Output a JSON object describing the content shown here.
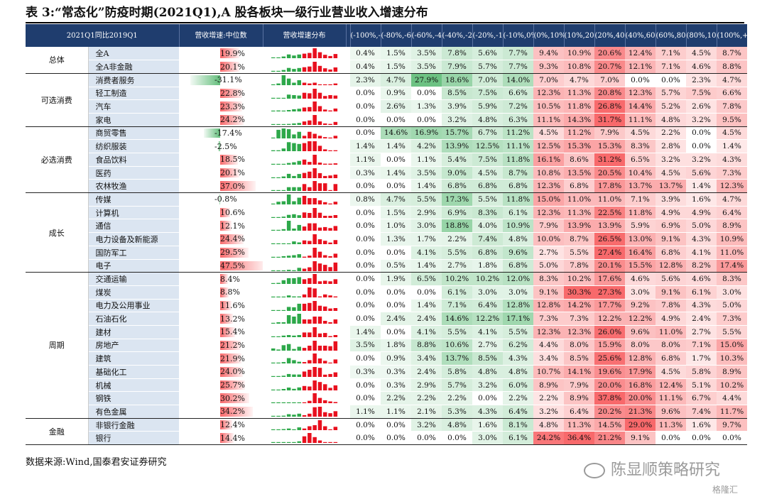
{
  "title": "表 3:“常态化”防疫时期(2021Q1),A 股各板块一级行业营业收入增速分布",
  "header": {
    "col0": "2021Q1同比2019Q1",
    "median": "营收增速:中位数",
    "dist": "营收增速分布",
    "buckets": [
      "(-100%,-80%)",
      "(-80%,-60%)",
      "(-60%,-40%)",
      "(-40%,-20%)",
      "(-20%,-10%)",
      "(-10%,0%)",
      "(0%,10%)",
      "(10%,20%)",
      "(20%,40%)",
      "(40%,60%)",
      "(60%,80%)",
      "(80%,100%)",
      "(100%,+∞)"
    ]
  },
  "groups": [
    {
      "name": "总体",
      "rows": [
        {
          "ind": "全A",
          "median": "19.9%",
          "mv": 19.9,
          "vals": [
            "0.4%",
            "1.5%",
            "3.5%",
            "7.8%",
            "5.6%",
            "7.7%",
            "9.4%",
            "10.9%",
            "20.6%",
            "12.4%",
            "7.1%",
            "4.5%",
            "8.7%"
          ]
        },
        {
          "ind": "全A非金融",
          "median": "20.1%",
          "mv": 20.1,
          "vals": [
            "0.4%",
            "1.5%",
            "3.5%",
            "7.9%",
            "5.7%",
            "7.7%",
            "9.3%",
            "10.8%",
            "20.7%",
            "12.1%",
            "7.1%",
            "4.6%",
            "8.8%"
          ]
        }
      ]
    },
    {
      "name": "可选消费",
      "rows": [
        {
          "ind": "消费者服务",
          "median": "-31.1%",
          "mv": -31.1,
          "vals": [
            "2.3%",
            "4.7%",
            "27.9%",
            "18.6%",
            "7.0%",
            "14.0%",
            "7.0%",
            "4.7%",
            "7.0%",
            "0.0%",
            "0.0%",
            "2.3%",
            "4.7%"
          ]
        },
        {
          "ind": "轻工制造",
          "median": "22.8%",
          "mv": 22.8,
          "vals": [
            "0.0%",
            "0.9%",
            "0.0%",
            "8.5%",
            "7.5%",
            "6.6%",
            "12.3%",
            "11.3%",
            "20.8%",
            "12.3%",
            "5.7%",
            "7.5%",
            "6.6%"
          ]
        },
        {
          "ind": "汽车",
          "median": "23.3%",
          "mv": 23.3,
          "vals": [
            "0.0%",
            "2.6%",
            "1.3%",
            "3.9%",
            "5.9%",
            "7.2%",
            "10.5%",
            "11.8%",
            "26.8%",
            "14.4%",
            "5.2%",
            "2.6%",
            "7.8%"
          ]
        },
        {
          "ind": "家电",
          "median": "24.2%",
          "mv": 24.2,
          "vals": [
            "0.0%",
            "0.0%",
            "0.0%",
            "3.2%",
            "4.8%",
            "6.3%",
            "11.1%",
            "14.3%",
            "31.7%",
            "11.1%",
            "4.8%",
            "3.2%",
            "9.5%"
          ]
        }
      ]
    },
    {
      "name": "必选消费",
      "rows": [
        {
          "ind": "商贸零售",
          "median": "-17.4%",
          "mv": -17.4,
          "vals": [
            "0.0%",
            "14.6%",
            "16.9%",
            "15.7%",
            "6.7%",
            "11.2%",
            "4.5%",
            "11.2%",
            "7.9%",
            "4.5%",
            "2.2%",
            "0.0%",
            "4.5%"
          ]
        },
        {
          "ind": "纺织服装",
          "median": "-2.5%",
          "mv": -2.5,
          "vals": [
            "1.4%",
            "1.4%",
            "4.2%",
            "13.9%",
            "12.5%",
            "11.1%",
            "12.5%",
            "15.3%",
            "15.3%",
            "8.3%",
            "2.8%",
            "0.0%",
            "1.4%"
          ]
        },
        {
          "ind": "食品饮料",
          "median": "18.5%",
          "mv": 18.5,
          "vals": [
            "1.1%",
            "0.0%",
            "1.1%",
            "5.4%",
            "7.5%",
            "11.8%",
            "16.1%",
            "8.6%",
            "31.2%",
            "6.5%",
            "3.2%",
            "3.2%",
            "4.3%"
          ]
        },
        {
          "ind": "医药",
          "median": "20.1%",
          "mv": 20.1,
          "vals": [
            "0.3%",
            "1.4%",
            "3.5%",
            "9.0%",
            "4.5%",
            "8.7%",
            "10.8%",
            "13.5%",
            "20.5%",
            "10.4%",
            "4.5%",
            "5.6%",
            "7.3%"
          ]
        },
        {
          "ind": "农林牧渔",
          "median": "37.0%",
          "mv": 37.0,
          "vals": [
            "0.0%",
            "0.0%",
            "1.4%",
            "6.8%",
            "6.8%",
            "6.8%",
            "12.3%",
            "6.8%",
            "17.8%",
            "13.7%",
            "13.7%",
            "1.4%",
            "12.3%"
          ]
        }
      ]
    },
    {
      "name": "成长",
      "rows": [
        {
          "ind": "传媒",
          "median": "-0.8%",
          "mv": -0.8,
          "vals": [
            "0.8%",
            "4.7%",
            "5.5%",
            "17.3%",
            "5.5%",
            "11.8%",
            "15.0%",
            "11.0%",
            "11.0%",
            "7.1%",
            "3.9%",
            "1.6%",
            "4.7%"
          ]
        },
        {
          "ind": "计算机",
          "median": "10.6%",
          "mv": 10.6,
          "vals": [
            "0.0%",
            "1.5%",
            "2.9%",
            "6.9%",
            "8.3%",
            "6.1%",
            "12.3%",
            "11.3%",
            "22.5%",
            "11.8%",
            "4.9%",
            "4.9%",
            "6.4%"
          ]
        },
        {
          "ind": "通信",
          "median": "12.1%",
          "mv": 12.1,
          "vals": [
            "0.0%",
            "1.0%",
            "3.0%",
            "18.8%",
            "4.0%",
            "10.9%",
            "7.9%",
            "13.9%",
            "13.9%",
            "5.9%",
            "6.9%",
            "5.0%",
            "8.9%"
          ]
        },
        {
          "ind": "电力设备及新能源",
          "median": "24.4%",
          "mv": 24.4,
          "vals": [
            "0.0%",
            "1.3%",
            "1.7%",
            "2.2%",
            "7.4%",
            "4.8%",
            "10.0%",
            "8.7%",
            "26.5%",
            "13.0%",
            "9.1%",
            "4.3%",
            "10.9%"
          ]
        },
        {
          "ind": "国防军工",
          "median": "29.5%",
          "mv": 29.5,
          "vals": [
            "0.0%",
            "0.0%",
            "4.1%",
            "5.5%",
            "6.8%",
            "9.6%",
            "2.7%",
            "5.5%",
            "27.4%",
            "16.4%",
            "6.8%",
            "4.1%",
            "11.0%"
          ]
        },
        {
          "ind": "电子",
          "median": "47.5%",
          "mv": 47.5,
          "vals": [
            "0.0%",
            "0.5%",
            "1.4%",
            "2.7%",
            "1.8%",
            "6.8%",
            "5.0%",
            "7.8%",
            "20.1%",
            "15.5%",
            "12.8%",
            "8.2%",
            "17.4%"
          ]
        }
      ]
    },
    {
      "name": "周期",
      "rows": [
        {
          "ind": "交通运输",
          "median": "8.4%",
          "mv": 8.4,
          "vals": [
            "0.0%",
            "1.9%",
            "6.5%",
            "10.2%",
            "10.2%",
            "12.0%",
            "8.3%",
            "10.2%",
            "17.6%",
            "4.6%",
            "5.6%",
            "4.6%",
            "8.3%"
          ]
        },
        {
          "ind": "煤炭",
          "median": "8.8%",
          "mv": 8.8,
          "vals": [
            "0.0%",
            "0.0%",
            "0.0%",
            "6.1%",
            "3.0%",
            "3.0%",
            "9.1%",
            "30.3%",
            "27.3%",
            "3.0%",
            "9.1%",
            "6.1%",
            "3.0%"
          ]
        },
        {
          "ind": "电力及公用事业",
          "median": "11.6%",
          "mv": 11.6,
          "vals": [
            "0.0%",
            "0.0%",
            "1.4%",
            "7.1%",
            "6.4%",
            "12.8%",
            "12.8%",
            "14.2%",
            "17.7%",
            "9.2%",
            "7.8%",
            "4.3%",
            "5.0%"
          ]
        },
        {
          "ind": "石油石化",
          "median": "13.2%",
          "mv": 13.2,
          "vals": [
            "0.0%",
            "2.4%",
            "2.4%",
            "14.6%",
            "12.2%",
            "17.1%",
            "7.3%",
            "7.3%",
            "12.2%",
            "12.2%",
            "4.9%",
            "2.4%",
            "7.3%"
          ]
        },
        {
          "ind": "建材",
          "median": "15.4%",
          "mv": 15.4,
          "vals": [
            "1.4%",
            "0.0%",
            "4.1%",
            "5.5%",
            "4.1%",
            "5.5%",
            "12.3%",
            "12.3%",
            "26.0%",
            "9.6%",
            "11.0%",
            "2.7%",
            "5.5%"
          ]
        },
        {
          "ind": "房地产",
          "median": "21.2%",
          "mv": 21.2,
          "vals": [
            "3.5%",
            "1.8%",
            "8.8%",
            "10.6%",
            "2.7%",
            "6.2%",
            "4.4%",
            "8.0%",
            "15.9%",
            "8.0%",
            "8.0%",
            "7.1%",
            "15.0%"
          ]
        },
        {
          "ind": "建筑",
          "median": "21.9%",
          "mv": 21.9,
          "vals": [
            "0.0%",
            "0.9%",
            "3.4%",
            "13.7%",
            "8.5%",
            "4.3%",
            "3.4%",
            "8.5%",
            "25.6%",
            "12.8%",
            "6.8%",
            "1.7%",
            "10.3%"
          ]
        },
        {
          "ind": "基础化工",
          "median": "24.0%",
          "mv": 24.0,
          "vals": [
            "0.3%",
            "0.3%",
            "2.4%",
            "5.8%",
            "4.8%",
            "4.8%",
            "10.7%",
            "14.1%",
            "19.6%",
            "17.9%",
            "4.5%",
            "5.8%",
            "8.9%"
          ]
        },
        {
          "ind": "机械",
          "median": "25.7%",
          "mv": 25.7,
          "vals": [
            "0.0%",
            "0.3%",
            "2.9%",
            "5.7%",
            "3.2%",
            "6.0%",
            "8.9%",
            "7.9%",
            "20.0%",
            "16.8%",
            "12.4%",
            "5.1%",
            "10.2%"
          ]
        },
        {
          "ind": "钢铁",
          "median": "30.2%",
          "mv": 30.2,
          "vals": [
            "0.0%",
            "2.2%",
            "2.2%",
            "2.2%",
            "0.0%",
            "2.2%",
            "2.2%",
            "8.9%",
            "37.8%",
            "20.0%",
            "11.1%",
            "6.7%",
            "4.4%"
          ]
        },
        {
          "ind": "有色金属",
          "median": "34.2%",
          "mv": 34.2,
          "vals": [
            "1.1%",
            "1.1%",
            "2.1%",
            "5.3%",
            "4.3%",
            "6.4%",
            "3.2%",
            "6.4%",
            "20.2%",
            "21.3%",
            "9.6%",
            "7.4%",
            "11.7%"
          ]
        }
      ]
    },
    {
      "name": "金融",
      "rows": [
        {
          "ind": "非银行金融",
          "median": "12.4%",
          "mv": 12.4,
          "vals": [
            "0.0%",
            "0.0%",
            "3.2%",
            "4.8%",
            "1.6%",
            "8.1%",
            "4.8%",
            "11.3%",
            "14.5%",
            "29.0%",
            "11.3%",
            "1.6%",
            "9.7%"
          ]
        },
        {
          "ind": "银行",
          "median": "14.4%",
          "mv": 14.4,
          "vals": [
            "0.0%",
            "0.0%",
            "0.0%",
            "0.0%",
            "3.0%",
            "6.1%",
            "24.2%",
            "36.4%",
            "21.2%",
            "9.1%",
            "0.0%",
            "0.0%",
            "0.0%"
          ]
        }
      ]
    }
  ],
  "source": "数据来源:Wind,国泰君安证券研究",
  "watermark": "陈显顺策略研究",
  "watermark2": "格隆汇",
  "colors": {
    "header": "#1f3d6e",
    "neg": "#63be7b",
    "pos": "#f8696b",
    "spark_neg": "#2da84a",
    "spark_pos": "#e8101e",
    "ind_bg": "#dbe5f1"
  }
}
